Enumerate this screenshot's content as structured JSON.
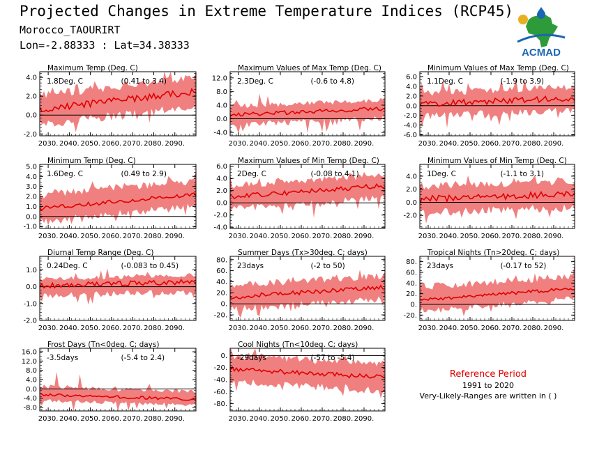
{
  "header": {
    "title": "Projected Changes in Extreme Temperature Indices (RCP45)",
    "location": "Morocco_TAOURIRT",
    "coords": "Lon=-2.88333 : Lat=34.38333",
    "logo_text": "ACMAD"
  },
  "reference": {
    "title": "Reference Period",
    "years": "1991 to 2020",
    "note": "Very-Likely-Ranges are written in ( )"
  },
  "colors": {
    "band": "#f08080",
    "line": "#e00000",
    "zero": "#000000",
    "logo_blue": "#1a66b3",
    "logo_green": "#2e9b3a",
    "logo_gold": "#e8b020"
  },
  "chart_data": [
    {
      "type": "area",
      "title": "Maximum Temp (Deg. C)",
      "stat": "1.8Deg. C",
      "range": "(0.41 to 3.4)",
      "ylim": [
        -2.2,
        4.6
      ],
      "yticks": [
        "4.0",
        "2.0",
        "0.0",
        "-2.0"
      ],
      "ytickvals": [
        4,
        2,
        0,
        -2
      ],
      "xticks": [
        "2030.",
        "2040.",
        "2050.",
        "2060.",
        "2070.",
        "2080.",
        "2090."
      ],
      "xlim": [
        2026,
        2100
      ],
      "trend": {
        "start": 0.6,
        "end": 2.5
      },
      "band_lower_offset": 1.6,
      "band_upper_offset": 1.5,
      "spike": 1.0,
      "noise": 0.35
    },
    {
      "type": "area",
      "title": "Maximum Values of Max Temp (Deg. C)",
      "stat": "2.3Deg. C",
      "range": "(-0.6 to 4.8)",
      "ylim": [
        -5.0,
        13.8
      ],
      "yticks": [
        "12.0",
        "8.0",
        "4.0",
        "0.0",
        "-4.0"
      ],
      "ytickvals": [
        12,
        8,
        4,
        0,
        -4
      ],
      "xticks": [
        "2030.",
        "2040.",
        "2050.",
        "2060.",
        "2070.",
        "2080.",
        "2090."
      ],
      "xlim": [
        2026,
        2100
      ],
      "trend": {
        "start": 1.2,
        "end": 3.0
      },
      "band_lower_offset": 3.0,
      "band_upper_offset": 2.5,
      "spike": 5.0,
      "noise": 0.6
    },
    {
      "type": "area",
      "title": "Minimum Values of Max Temp (Deg. C)",
      "stat": "1.1Deg. C",
      "range": "(-1.9 to 3.9)",
      "ylim": [
        -6.2,
        7.0
      ],
      "yticks": [
        "6.0",
        "4.0",
        "2.0",
        "0.0",
        "-2.0",
        "-4.0",
        "-6.0"
      ],
      "ytickvals": [
        6,
        4,
        2,
        0,
        -2,
        -4,
        -6
      ],
      "xticks": [
        "2030.",
        "2040.",
        "2050.",
        "2060.",
        "2070.",
        "2080.",
        "2090."
      ],
      "xlim": [
        2026,
        2100
      ],
      "trend": {
        "start": 0.3,
        "end": 1.6
      },
      "band_lower_offset": 2.5,
      "band_upper_offset": 2.3,
      "spike": 2.5,
      "noise": 0.6
    },
    {
      "type": "area",
      "title": "Minimum Temp (Deg. C)",
      "stat": "1.6Deg. C",
      "range": "(0.49 to 2.9)",
      "ylim": [
        -1.2,
        5.2
      ],
      "yticks": [
        "5.0",
        "4.0",
        "3.0",
        "2.0",
        "1.0",
        "0.0",
        "-1.0"
      ],
      "ytickvals": [
        5,
        4,
        3,
        2,
        1,
        0,
        -1
      ],
      "xticks": [
        "2030.",
        "2040.",
        "2050.",
        "2060.",
        "2070.",
        "2080.",
        "2090."
      ],
      "xlim": [
        2026,
        2100
      ],
      "trend": {
        "start": 0.8,
        "end": 2.2
      },
      "band_lower_offset": 1.2,
      "band_upper_offset": 1.4,
      "spike": 0.6,
      "noise": 0.2
    },
    {
      "type": "area",
      "title": "Maximum Values of Min Temp (Deg. C)",
      "stat": "2Deg. C",
      "range": "(-0.08 to 4.1)",
      "ylim": [
        -4.2,
        6.3
      ],
      "yticks": [
        "6.0",
        "4.0",
        "2.0",
        "0.0",
        "-2.0",
        "-4.0"
      ],
      "ytickvals": [
        6,
        4,
        2,
        0,
        -2,
        -4
      ],
      "xticks": [
        "2030.",
        "2040.",
        "2050.",
        "2060.",
        "2070.",
        "2080.",
        "2090."
      ],
      "xlim": [
        2026,
        2100
      ],
      "trend": {
        "start": 1.0,
        "end": 2.8
      },
      "band_lower_offset": 2.0,
      "band_upper_offset": 1.8,
      "spike": 2.0,
      "noise": 0.4
    },
    {
      "type": "area",
      "title": "Minimum Values of Min Temp (Deg. C)",
      "stat": "1Deg. C",
      "range": "(-1.1 to 3.1)",
      "ylim": [
        -4.0,
        5.8
      ],
      "yticks": [
        "4.0",
        "2.0",
        "0.0",
        "-2.0"
      ],
      "ytickvals": [
        4,
        2,
        0,
        -2
      ],
      "xticks": [
        "2030.",
        "2040.",
        "2050.",
        "2060.",
        "2070.",
        "2080.",
        "2090."
      ],
      "xlim": [
        2026,
        2100
      ],
      "trend": {
        "start": 0.5,
        "end": 1.3
      },
      "band_lower_offset": 2.1,
      "band_upper_offset": 2.0,
      "spike": 1.5,
      "noise": 0.5
    },
    {
      "type": "area",
      "title": "Diurnal Temp Range (Deg. C)",
      "stat": "0.24Deg. C",
      "range": "(-0.083 to 0.45)",
      "ylim": [
        -2.0,
        1.8
      ],
      "yticks": [
        "1.0",
        "0.0",
        "-1.0",
        "-2.0"
      ],
      "ytickvals": [
        1,
        0,
        -1,
        -2
      ],
      "xticks": [
        "2030.",
        "2040.",
        "2050.",
        "2060.",
        "2070.",
        "2080.",
        "2090."
      ],
      "xlim": [
        2026,
        2100
      ],
      "trend": {
        "start": 0.05,
        "end": 0.3
      },
      "band_lower_offset": 0.6,
      "band_upper_offset": 0.4,
      "spike": 0.6,
      "noise": 0.15
    },
    {
      "type": "area",
      "title": "Summer Days (Tx>30deg. C; days)",
      "stat": "23days",
      "range": "(-2 to 50)",
      "ylim": [
        -30,
        86
      ],
      "yticks": [
        "80.",
        "60.",
        "40.",
        "20.",
        "0.",
        "-20."
      ],
      "ytickvals": [
        80,
        60,
        40,
        20,
        0,
        -20
      ],
      "xticks": [
        "2030.",
        "2040.",
        "2050.",
        "2060.",
        "2070.",
        "2080.",
        "2090."
      ],
      "xlim": [
        2026,
        2100
      ],
      "trend": {
        "start": 12,
        "end": 30
      },
      "band_lower_offset": 22,
      "band_upper_offset": 22,
      "spike": 15,
      "noise": 4
    },
    {
      "type": "area",
      "title": "Tropical Nights (Tn>20deg. C; days)",
      "stat": "23days",
      "range": "(-0.17 to 52)",
      "ylim": [
        -30,
        90
      ],
      "yticks": [
        "80.",
        "60.",
        "40.",
        "20.",
        "0.",
        "-20."
      ],
      "ytickvals": [
        80,
        60,
        40,
        20,
        0,
        -20
      ],
      "xticks": [
        "2030.",
        "2040.",
        "2050.",
        "2060.",
        "2070.",
        "2080.",
        "2090."
      ],
      "xlim": [
        2026,
        2100
      ],
      "trend": {
        "start": 8,
        "end": 30
      },
      "band_lower_offset": 20,
      "band_upper_offset": 24,
      "spike": 15,
      "noise": 3
    },
    {
      "type": "area",
      "title": "Frost Days (Tn<0deg. C; days)",
      "stat": "-3.5days",
      "range": "(-5.4 to 2.4)",
      "ylim": [
        -9.5,
        17.5
      ],
      "yticks": [
        "16.0",
        "12.0",
        "8.0",
        "4.0",
        "0.0",
        "-4.0",
        "-8.0"
      ],
      "ytickvals": [
        16,
        12,
        8,
        4,
        0,
        -4,
        -8
      ],
      "xticks": [
        "2030.",
        "2040.",
        "2050.",
        "2060.",
        "2070.",
        "2080.",
        "2090."
      ],
      "xlim": [
        2026,
        2100
      ],
      "trend": {
        "start": -2.5,
        "end": -4.5
      },
      "band_lower_offset": 2.5,
      "band_upper_offset": 3.5,
      "spike": 8.0,
      "noise": 0.6
    },
    {
      "type": "area",
      "title": "Cool Nights (Tn<10deg. C; days)",
      "stat": "-29days",
      "range": "(-57 to -5.4)",
      "ylim": [
        -92,
        12
      ],
      "yticks": [
        "0.",
        "-20.",
        "-40.",
        "-60.",
        "-80."
      ],
      "ytickvals": [
        0,
        -20,
        -40,
        -60,
        -80
      ],
      "xticks": [
        "2030.",
        "2040.",
        "2050.",
        "2060.",
        "2070.",
        "2080.",
        "2090."
      ],
      "xlim": [
        2026,
        2100
      ],
      "trend": {
        "start": -22,
        "end": -36
      },
      "band_lower_offset": 22,
      "band_upper_offset": 22,
      "spike": 12,
      "noise": 4
    }
  ]
}
